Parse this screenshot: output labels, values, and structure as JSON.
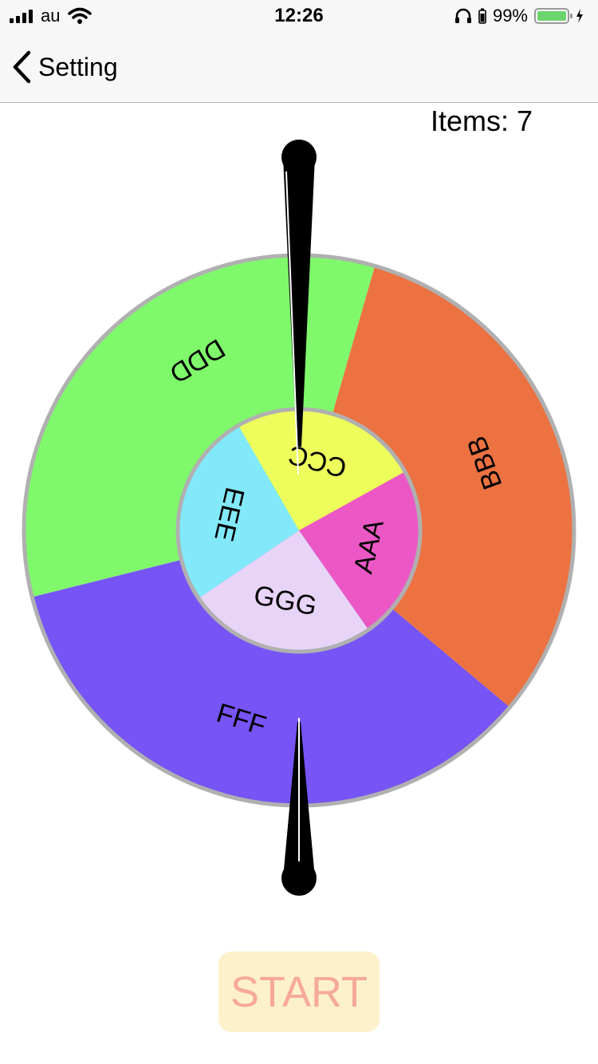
{
  "status_bar": {
    "carrier": "au",
    "time": "12:26",
    "battery_percent": "99%",
    "battery_level": 0.99,
    "icons": [
      "signal-icon",
      "wifi-icon",
      "headphones-icon",
      "battery-icon",
      "charging-icon"
    ]
  },
  "nav": {
    "back_label": "Setting",
    "back_icon": "chevron-left-icon"
  },
  "items_label": "Items: 7",
  "wheel": {
    "colors": {
      "ring_border": "#b0b0b0",
      "pointer": "#000000"
    },
    "outer_segments": [
      {
        "label": "BBB",
        "color": "#ec7242"
      },
      {
        "label": "FFF",
        "color": "#7654f5"
      },
      {
        "label": "DDD",
        "color": "#7ff96b"
      }
    ],
    "inner_segments": [
      {
        "label": "AAA",
        "color": "#eb58c6"
      },
      {
        "label": "GGG",
        "color": "#e8d4f7"
      },
      {
        "label": "EEE",
        "color": "#82e9fb"
      },
      {
        "label": "CCC",
        "color": "#edfd5c"
      }
    ]
  },
  "start_button": {
    "label": "START",
    "background": "#fdf1cc",
    "text_color": "#f6a99a"
  }
}
